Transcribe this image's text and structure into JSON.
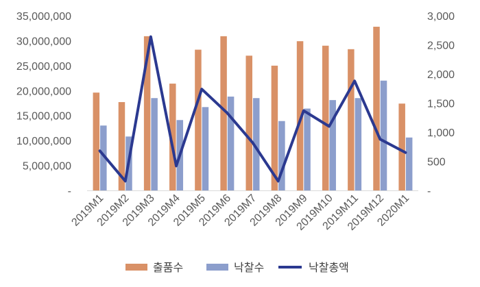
{
  "chart_data": {
    "type": "bar",
    "categories": [
      "2019M1",
      "2019M2",
      "2019M3",
      "2019M4",
      "2019M5",
      "2019M6",
      "2019M7",
      "2019M8",
      "2019M9",
      "2019M10",
      "2019M11",
      "2019M12",
      "2020M1"
    ],
    "series": [
      {
        "name": "출품수",
        "type": "bar",
        "axis": "left",
        "color": "#D99167",
        "values": [
          19600000,
          17700000,
          30900000,
          21400000,
          28200000,
          30900000,
          27000000,
          25000000,
          29900000,
          29000000,
          28300000,
          32800000,
          17400000
        ]
      },
      {
        "name": "낙찰수",
        "type": "bar",
        "axis": "left",
        "color": "#8C9ECC",
        "values": [
          13000000,
          10800000,
          18500000,
          14100000,
          16700000,
          18800000,
          18500000,
          13900000,
          16400000,
          18100000,
          18500000,
          22000000,
          10600000
        ]
      },
      {
        "name": "낙찰총액",
        "type": "line",
        "axis": "right",
        "color": "#2B3990",
        "values": [
          680,
          160,
          2640,
          420,
          1740,
          1330,
          820,
          160,
          1370,
          1100,
          1880,
          880,
          650
        ]
      }
    ],
    "y_left": {
      "min": 0,
      "max": 35000000,
      "step": 5000000,
      "tick_labels": [
        "-",
        "5,000,000",
        "10,000,000",
        "15,000,000",
        "20,000,000",
        "25,000,000",
        "30,000,000",
        "35,000,000"
      ]
    },
    "y_right": {
      "min": 0,
      "max": 3000,
      "step": 500,
      "tick_labels": [
        "-",
        "500",
        "1,000",
        "1,500",
        "2,000",
        "2,500",
        "3,000"
      ]
    },
    "grid": false,
    "legend_position": "bottom",
    "title": "",
    "xlabel": "",
    "ylabel": ""
  }
}
